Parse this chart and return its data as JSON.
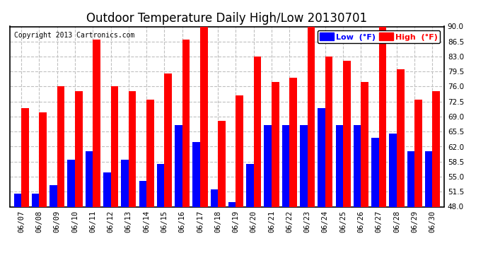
{
  "title": "Outdoor Temperature Daily High/Low 20130701",
  "copyright": "Copyright 2013 Cartronics.com",
  "legend_low": "Low  (°F)",
  "legend_high": "High  (°F)",
  "dates": [
    "06/07",
    "06/08",
    "06/09",
    "06/10",
    "06/11",
    "06/12",
    "06/13",
    "06/14",
    "06/15",
    "06/16",
    "06/17",
    "06/18",
    "06/19",
    "06/20",
    "06/21",
    "06/22",
    "06/23",
    "06/24",
    "06/25",
    "06/26",
    "06/27",
    "06/28",
    "06/29",
    "06/30"
  ],
  "highs": [
    71,
    70,
    76,
    75,
    87,
    76,
    75,
    73,
    79,
    87,
    91,
    68,
    74,
    83,
    77,
    78,
    90,
    83,
    82,
    77,
    90,
    80,
    73,
    75
  ],
  "lows": [
    51,
    51,
    53,
    59,
    61,
    56,
    59,
    54,
    58,
    67,
    63,
    52,
    49,
    58,
    67,
    67,
    67,
    71,
    67,
    67,
    64,
    65,
    61,
    61
  ],
  "ymin": 48.0,
  "ymax": 90.0,
  "yticks": [
    48.0,
    51.5,
    55.0,
    58.5,
    62.0,
    65.5,
    69.0,
    72.5,
    76.0,
    79.5,
    83.0,
    86.5,
    90.0
  ],
  "bar_width": 0.42,
  "low_color": "#0000ff",
  "high_color": "#ff0000",
  "bg_color": "#ffffff",
  "grid_color": "#c0c0c0",
  "title_fontsize": 12,
  "copyright_fontsize": 7,
  "tick_fontsize": 7.5
}
